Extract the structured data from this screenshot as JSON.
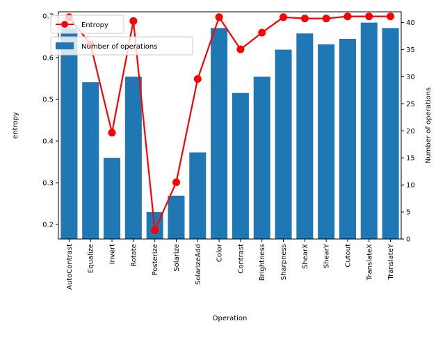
{
  "chart_data": {
    "type": "bar",
    "categories": [
      "AutoContrast",
      "Equalize",
      "Invert",
      "Rotate",
      "Posterize",
      "Solarize",
      "SolarizeAdd",
      "Color",
      "Contrast",
      "Brightness",
      "Sharpness",
      "ShearX",
      "ShearY",
      "Cutout",
      "TranslateX",
      "TranslateY"
    ],
    "xlabel": "Operation",
    "ylabel_left": "entropy",
    "ylabel_right": "Number of operations",
    "ylim_left": [
      0.165,
      0.71
    ],
    "ylim_right": [
      0,
      42
    ],
    "yticks_left": [
      0.2,
      0.3,
      0.4,
      0.5,
      0.6,
      0.7
    ],
    "yticks_right": [
      0,
      5,
      10,
      15,
      20,
      25,
      30,
      35,
      40
    ],
    "series": [
      {
        "name": "Number of operations",
        "kind": "bar",
        "axis": "right",
        "color": "#1f77b4",
        "values": [
          39,
          29,
          15,
          30,
          5,
          8,
          16,
          39,
          27,
          30,
          35,
          38,
          36,
          37,
          40,
          39
        ]
      },
      {
        "name": "Entropy",
        "kind": "line",
        "axis": "left",
        "color": "#ff0000",
        "values": [
          0.697,
          0.632,
          0.42,
          0.688,
          0.186,
          0.301,
          0.549,
          0.697,
          0.62,
          0.66,
          0.697,
          0.694,
          0.694,
          0.699,
          0.699,
          0.699
        ]
      }
    ],
    "legend": [
      "Entropy",
      "Number of operations"
    ],
    "legend_placement": "upper-left",
    "grid": false
  }
}
